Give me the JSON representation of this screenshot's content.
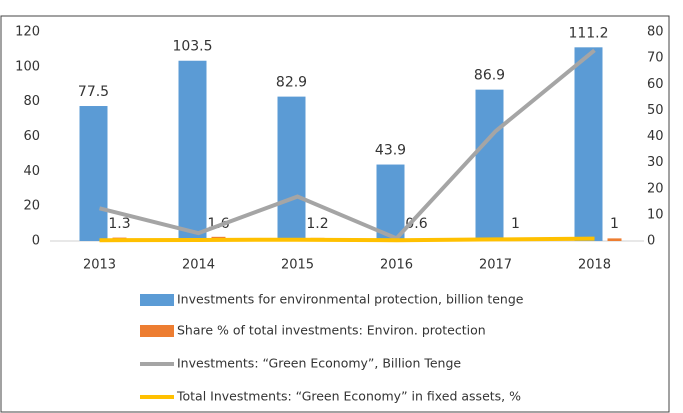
{
  "chart_data": {
    "type": "bar",
    "categories": [
      "2013",
      "2014",
      "2015",
      "2016",
      "2017",
      "2018"
    ],
    "series": [
      {
        "name": "Investments for environmental protection, billion tenge",
        "type": "bar",
        "color": "#5b9bd5",
        "values": [
          77.5,
          103.5,
          82.9,
          43.9,
          86.9,
          111.2
        ]
      },
      {
        "name": "Share % of total investments: Environ. protection",
        "type": "bar",
        "axis": "y2",
        "color": "#ed7d31",
        "values": [
          1.3,
          1.6,
          1.2,
          0.6,
          1,
          1
        ]
      },
      {
        "name": "Investments: “Green Economy”, Billion Tenge",
        "type": "line",
        "axis": "y2",
        "color": "#a5a5a5",
        "values": [
          12.5,
          3,
          17,
          1,
          42,
          73
        ]
      },
      {
        "name": "Total Investments: “Green Economy”  in fixed assets, %",
        "type": "line",
        "axis": "y2",
        "color": "#ffc000",
        "values": [
          0.3,
          0.4,
          0.5,
          0.3,
          0.6,
          0.9
        ]
      }
    ],
    "ylim": [
      0,
      120
    ],
    "yticks": [
      0,
      20,
      40,
      60,
      80,
      100,
      120
    ],
    "y2lim": [
      0,
      80
    ],
    "y2ticks": [
      0,
      10,
      20,
      30,
      40,
      50,
      60,
      70,
      80
    ],
    "grid": false
  }
}
